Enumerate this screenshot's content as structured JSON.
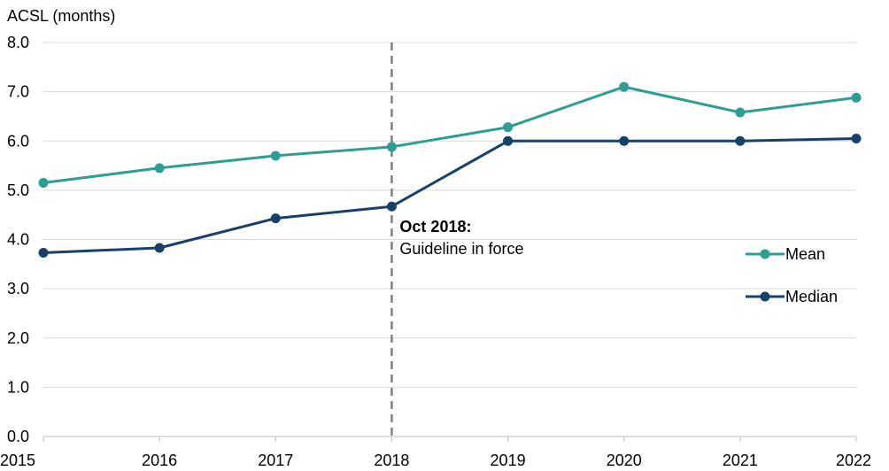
{
  "chart_data": {
    "type": "line",
    "ylabel": "ACSL (months)",
    "xlabel": "",
    "x": [
      "2015",
      "2016",
      "2017",
      "2018",
      "2019",
      "2020",
      "2021",
      "2022"
    ],
    "ylim": [
      0,
      8
    ],
    "yticks": [
      "0.0",
      "1.0",
      "2.0",
      "3.0",
      "4.0",
      "5.0",
      "6.0",
      "7.0",
      "8.0"
    ],
    "grid": "horizontal",
    "legend_placement": "right",
    "series": [
      {
        "name": "Mean",
        "color": "#2e9e94",
        "values": [
          5.15,
          5.45,
          5.7,
          5.88,
          6.28,
          7.1,
          6.58,
          6.88
        ]
      },
      {
        "name": "Median",
        "color": "#17406b",
        "values": [
          3.73,
          3.83,
          4.43,
          4.67,
          6.0,
          6.0,
          6.0,
          6.05
        ]
      }
    ],
    "annotation": {
      "x": "2018",
      "title": "Oct 2018:",
      "text": "Guideline in force",
      "line_color": "#808080"
    }
  }
}
